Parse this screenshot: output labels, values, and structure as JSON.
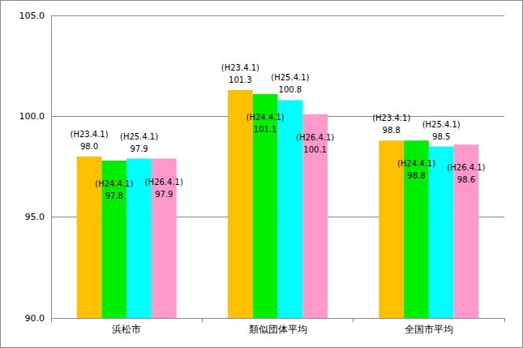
{
  "chart_data": {
    "type": "bar",
    "categories": [
      "浜松市",
      "類似団体平均",
      "全国市平均"
    ],
    "series": [
      {
        "name": "(H23.4.1)",
        "color": "#FFC000",
        "values": [
          98.0,
          101.3,
          98.8
        ],
        "value_labels": [
          "98.0",
          "101.3",
          "98.8"
        ]
      },
      {
        "name": "(H24.4.1)",
        "color": "#00EE00",
        "values": [
          97.8,
          101.1,
          98.8
        ],
        "value_labels": [
          "97.8",
          "101.1",
          "98.8"
        ]
      },
      {
        "name": "(H25.4.1)",
        "color": "#00FFFF",
        "values": [
          97.9,
          100.8,
          98.5
        ],
        "value_labels": [
          "97.9",
          "100.8",
          "98.5"
        ]
      },
      {
        "name": "(H26.4.1)",
        "color": "#FF99CC",
        "values": [
          97.9,
          100.1,
          98.6
        ],
        "value_labels": [
          "97.9",
          "100.1",
          "98.6"
        ]
      }
    ],
    "ylim": [
      90,
      105
    ],
    "yticks": [
      {
        "value": 90,
        "label": "90.0"
      },
      {
        "value": 95,
        "label": "95.0"
      },
      {
        "value": 100,
        "label": "100.0"
      },
      {
        "value": 105,
        "label": "105.0"
      }
    ],
    "grid": true,
    "data_labels": true
  }
}
